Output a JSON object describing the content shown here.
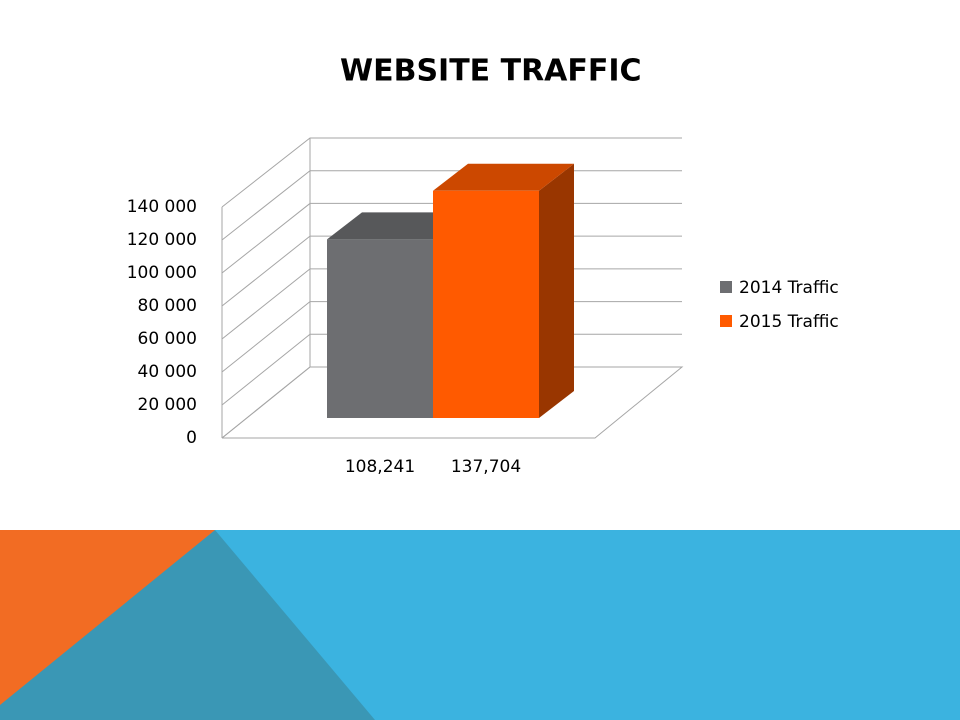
{
  "chart_data": {
    "type": "bar3d",
    "title": "WEBSITE TRAFFIC",
    "series": [
      {
        "name": "2014 Traffic",
        "color": "#6d6e71",
        "values": [
          108241
        ],
        "value_labels": [
          "108,241"
        ]
      },
      {
        "name": "2015 Traffic",
        "color": "#ff5a00",
        "values": [
          137704
        ],
        "value_labels": [
          "137,704"
        ]
      }
    ],
    "ylim": [
      0,
      140000
    ],
    "yticks": [
      0,
      {
        "value": 20000,
        "label": "20 000"
      },
      {
        "value": 40000,
        "label": "40 000"
      },
      {
        "value": 60000,
        "label": "60 000"
      },
      {
        "value": 80000,
        "label": "80 000"
      },
      {
        "value": 100000,
        "label": "100 000"
      },
      {
        "value": 120000,
        "label": "120 000"
      },
      {
        "value": 140000,
        "label": "140 000"
      }
    ],
    "grid": true,
    "legend": "right"
  }
}
